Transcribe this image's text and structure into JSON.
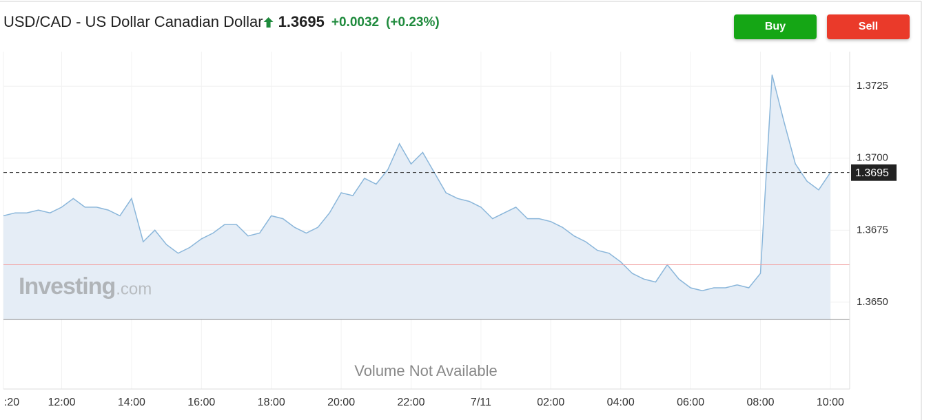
{
  "header": {
    "title": "USD/CAD - US Dollar Canadian Dollar",
    "price": "1.3695",
    "change": "+0.0032",
    "change_percent": "(+0.23%)"
  },
  "buttons": {
    "buy": "Buy",
    "sell": "Sell"
  },
  "watermark": {
    "brand": "Investing",
    "suffix": ".com"
  },
  "volume_note": "Volume Not Available",
  "chart_data": {
    "type": "area",
    "color": "#8ab6da",
    "fill": "#e5edf6",
    "categories": [
      ":20",
      null,
      null,
      null,
      null,
      "12:00",
      null,
      null,
      null,
      null,
      null,
      "14:00",
      null,
      null,
      null,
      null,
      null,
      "16:00",
      null,
      null,
      null,
      null,
      null,
      "18:00",
      null,
      null,
      null,
      null,
      null,
      "20:00",
      null,
      null,
      null,
      null,
      null,
      "22:00",
      null,
      null,
      null,
      null,
      null,
      "7/11",
      null,
      null,
      null,
      null,
      null,
      "02:00",
      null,
      null,
      null,
      null,
      null,
      "04:00",
      null,
      null,
      null,
      null,
      null,
      "06:00",
      null,
      null,
      null,
      null,
      null,
      "08:00",
      null,
      null,
      null,
      null,
      null,
      "10:00"
    ],
    "values": [
      1.368,
      1.3681,
      1.3681,
      1.3682,
      1.3681,
      1.3683,
      1.3686,
      1.3683,
      1.3683,
      1.3682,
      1.368,
      1.3686,
      1.3671,
      1.3675,
      1.367,
      1.3667,
      1.3669,
      1.3672,
      1.3674,
      1.3677,
      1.3677,
      1.3673,
      1.3674,
      1.368,
      1.3679,
      1.3676,
      1.3674,
      1.3676,
      1.3681,
      1.3688,
      1.3687,
      1.3693,
      1.3691,
      1.3696,
      1.3705,
      1.3698,
      1.3702,
      1.3695,
      1.3688,
      1.3686,
      1.3685,
      1.3683,
      1.3679,
      1.3681,
      1.3683,
      1.3679,
      1.3679,
      1.3678,
      1.3676,
      1.3673,
      1.3671,
      1.3668,
      1.3667,
      1.3664,
      1.366,
      1.3658,
      1.3657,
      1.3663,
      1.3658,
      1.3655,
      1.3654,
      1.3655,
      1.3655,
      1.3656,
      1.3655,
      1.366,
      1.3729,
      1.3713,
      1.3698,
      1.3692,
      1.3689,
      1.3695
    ],
    "ylim": [
      1.3644,
      1.3737
    ],
    "yticks": [
      {
        "value": 1.365,
        "label": "1.3650"
      },
      1.3675,
      {
        "value": 1.37,
        "label": "1.3700"
      },
      1.3725
    ],
    "last_value": 1.3695,
    "reference_line": 1.3663,
    "reference_color": "#f2a0a0",
    "grid": true
  }
}
